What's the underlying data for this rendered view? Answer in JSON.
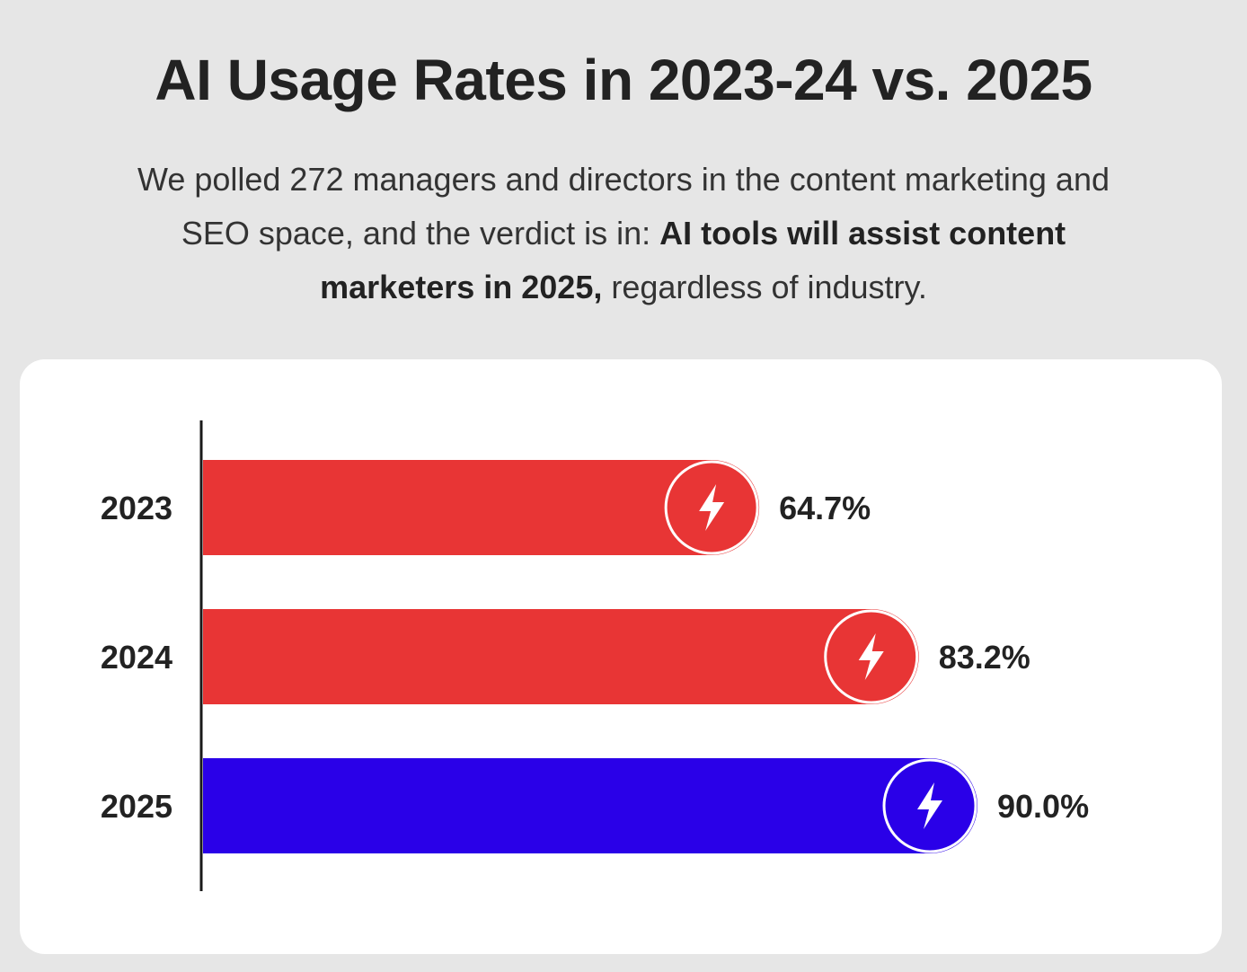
{
  "title": "AI Usage Rates in 2023-24 vs. 2025",
  "subtitle": {
    "part1": "We polled 272 managers and directors in the content marketing and SEO space, and the verdict is in: ",
    "bold": "AI tools will assist content marketers in 2025,",
    "part2": " regardless of industry."
  },
  "chart_data": {
    "type": "bar",
    "orientation": "horizontal",
    "categories": [
      "2023",
      "2024",
      "2025"
    ],
    "values": [
      64.7,
      83.2,
      90.0
    ],
    "labels": [
      "64.7%",
      "83.2%",
      "90.0%"
    ],
    "colors": [
      "#e83535",
      "#e83535",
      "#2a00e8"
    ],
    "icon": "lightning-bolt-icon",
    "title": "AI Usage Rates in 2023-24 vs. 2025",
    "xlabel": "",
    "ylabel": "",
    "xlim": [
      0,
      100
    ],
    "unit": "%",
    "grid": false,
    "legend": "none"
  }
}
